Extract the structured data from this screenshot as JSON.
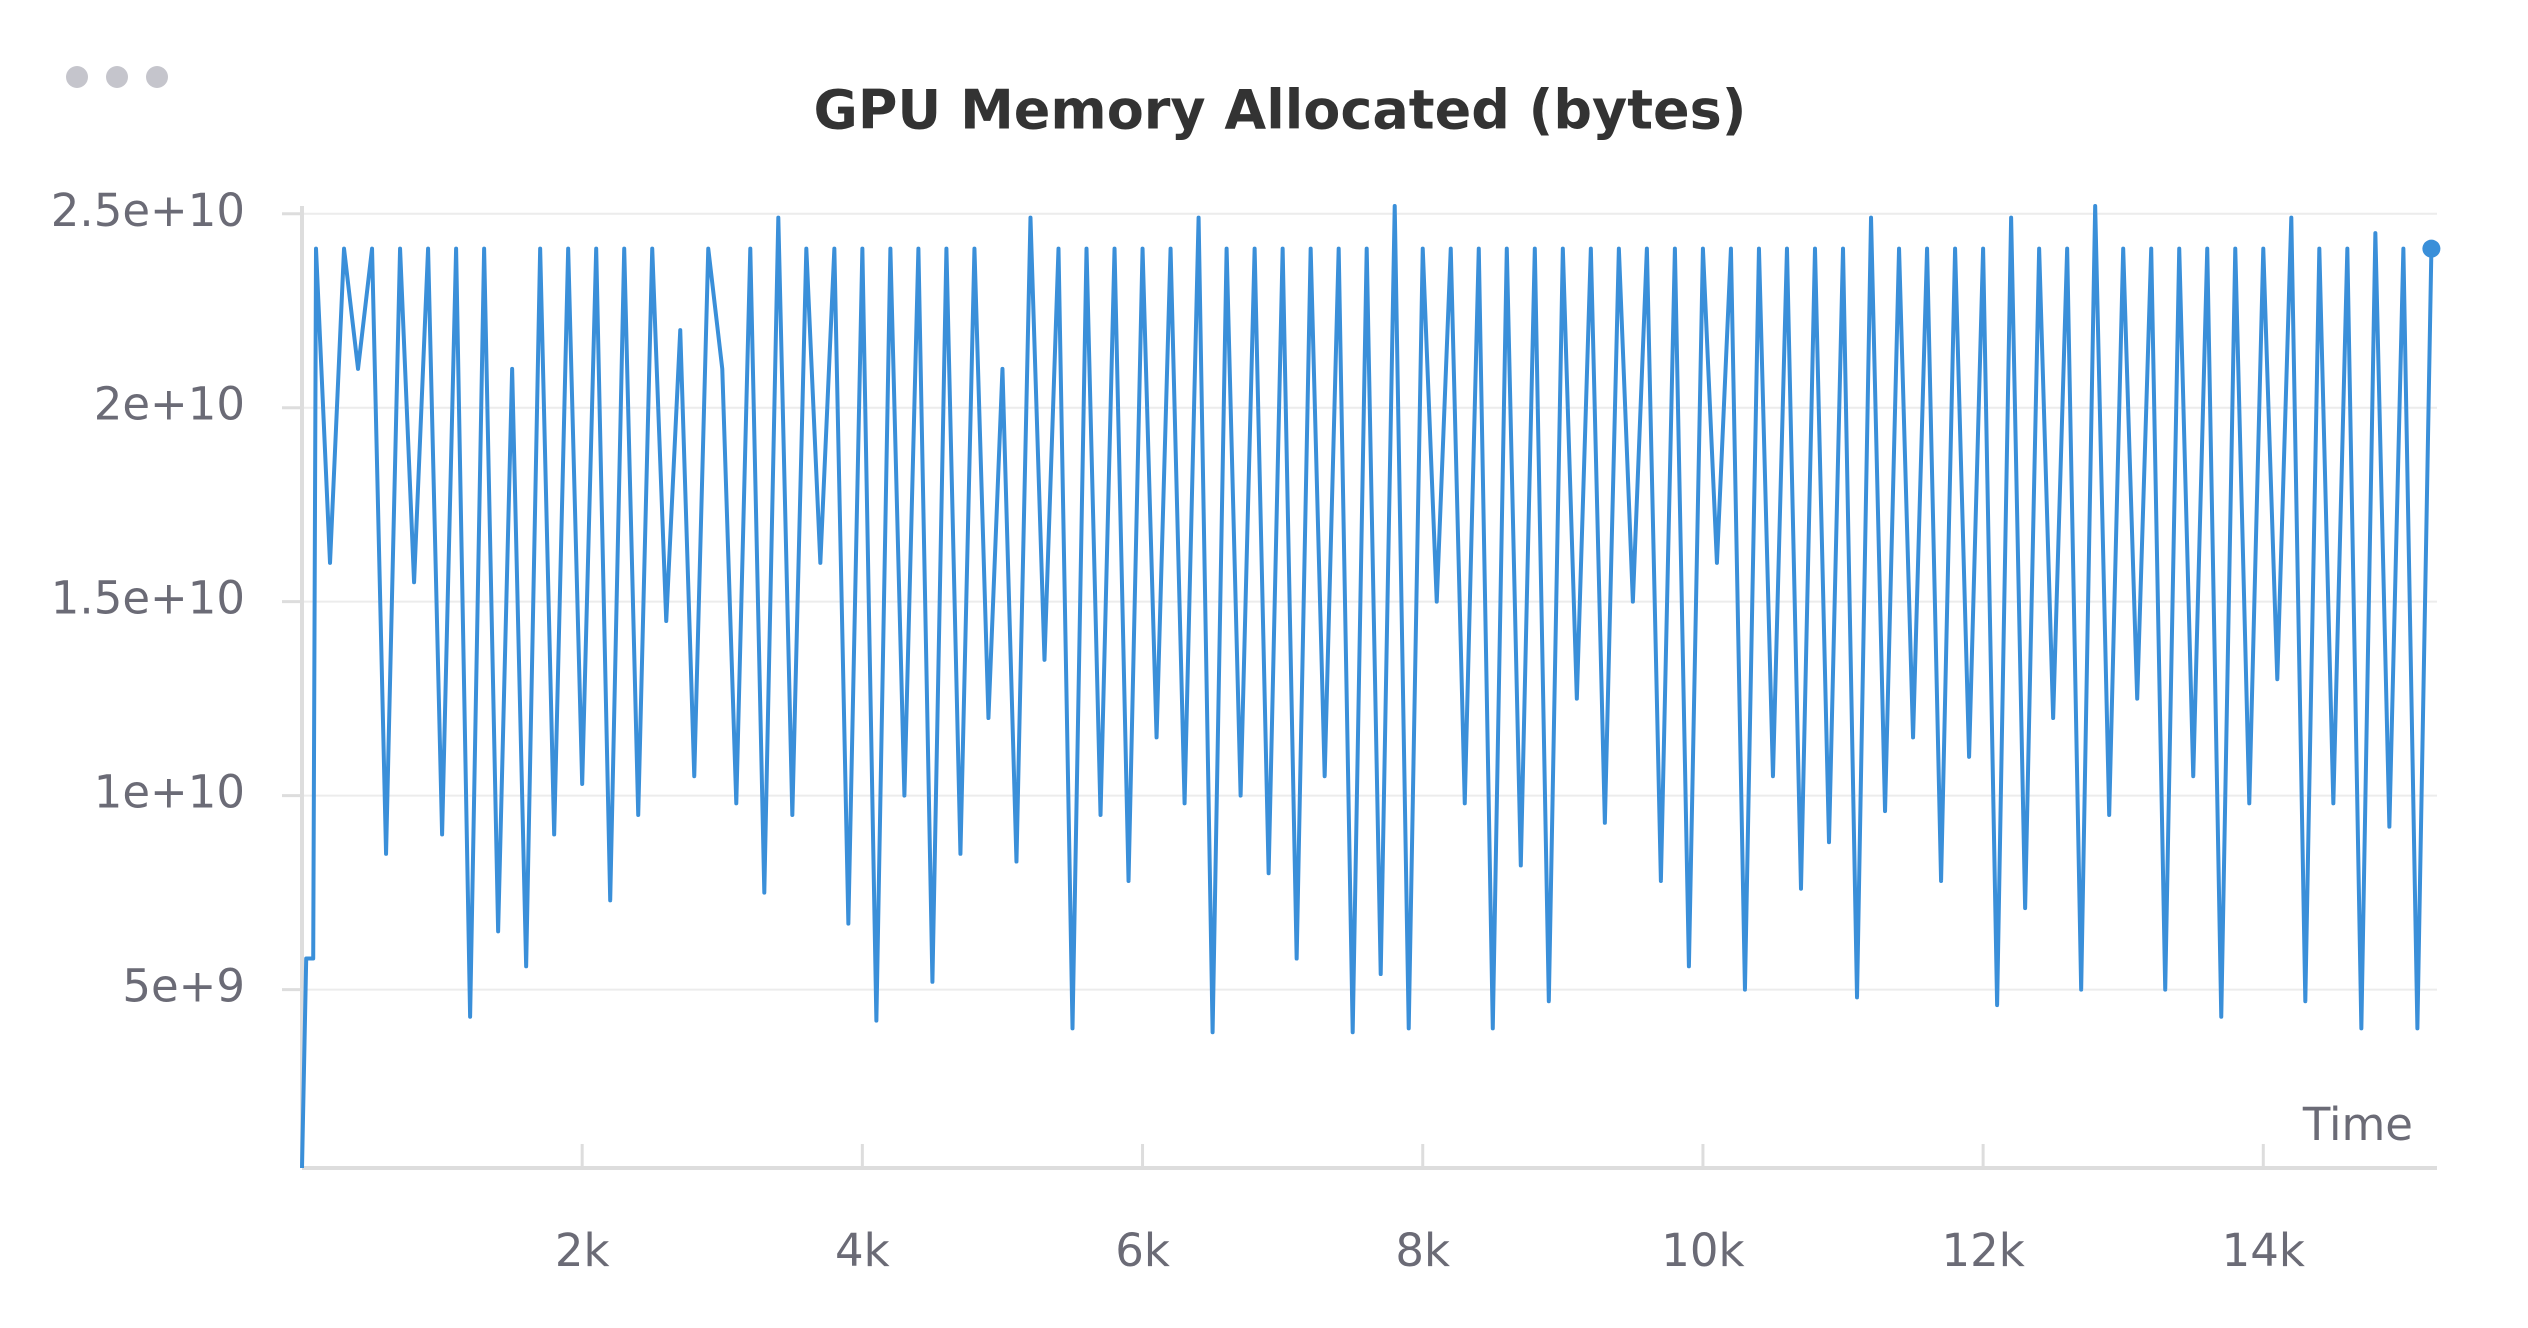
{
  "chart_data": {
    "type": "line",
    "title": "GPU Memory Allocated (bytes)",
    "x_label": "Time",
    "xlim": [
      0,
      15240
    ],
    "ylim": [
      400000000,
      25200000000
    ],
    "xticks": [
      {
        "value": 2000,
        "label": "2k"
      },
      {
        "value": 4000,
        "label": "4k"
      },
      {
        "value": 6000,
        "label": "6k"
      },
      {
        "value": 8000,
        "label": "8k"
      },
      {
        "value": 10000,
        "label": "10k"
      },
      {
        "value": 12000,
        "label": "12k"
      },
      {
        "value": 14000,
        "label": "14k"
      }
    ],
    "yticks": [
      {
        "value": 5000000000,
        "label": "5e+9"
      },
      {
        "value": 10000000000,
        "label": "1e+10"
      },
      {
        "value": 15000000000,
        "label": "1.5e+10"
      },
      {
        "value": 20000000000,
        "label": "2e+10"
      },
      {
        "value": 25000000000,
        "label": "2.5e+10"
      }
    ],
    "grid": true,
    "x": [
      0,
      30,
      80,
      100,
      200,
      300,
      400,
      500,
      600,
      700,
      800,
      900,
      1000,
      1100,
      1200,
      1300,
      1400,
      1500,
      1600,
      1700,
      1800,
      1900,
      2000,
      2100,
      2200,
      2300,
      2400,
      2500,
      2600,
      2700,
      2800,
      2900,
      3000,
      3100,
      3200,
      3300,
      3400,
      3500,
      3600,
      3700,
      3800,
      3900,
      4000,
      4100,
      4200,
      4300,
      4400,
      4500,
      4600,
      4700,
      4800,
      4900,
      5000,
      5100,
      5200,
      5300,
      5400,
      5500,
      5600,
      5700,
      5800,
      5900,
      6000,
      6100,
      6200,
      6300,
      6400,
      6500,
      6600,
      6700,
      6800,
      6900,
      7000,
      7100,
      7200,
      7300,
      7400,
      7500,
      7600,
      7700,
      7800,
      7900,
      8000,
      8100,
      8200,
      8300,
      8400,
      8500,
      8600,
      8700,
      8800,
      8900,
      9000,
      9100,
      9200,
      9300,
      9400,
      9500,
      9600,
      9700,
      9800,
      9900,
      10000,
      10100,
      10200,
      10300,
      10400,
      10500,
      10600,
      10700,
      10800,
      10900,
      11000,
      11100,
      11200,
      11300,
      11400,
      11500,
      11600,
      11700,
      11800,
      11900,
      12000,
      12100,
      12200,
      12300,
      12400,
      12500,
      12600,
      12700,
      12800,
      12900,
      13000,
      13100,
      13200,
      13300,
      13400,
      13500,
      13600,
      13700,
      13800,
      13900,
      14000,
      14100,
      14200,
      14300,
      14400,
      14500,
      14600,
      14700,
      14800,
      14900,
      15000,
      15100,
      15200
    ],
    "series": [
      {
        "name": "GPU Memory Allocated",
        "color": "#3a8fd9",
        "values": [
          400000000.0,
          5800000000.0,
          5800000000.0,
          24100000000.0,
          16000000000.0,
          24100000000.0,
          21000000000.0,
          24100000000.0,
          8500000000.0,
          24100000000.0,
          15500000000.0,
          24100000000.0,
          9000000000.0,
          24100000000.0,
          4300000000.0,
          24100000000.0,
          6500000000.0,
          21000000000.0,
          5600000000.0,
          24100000000.0,
          9000000000.0,
          24100000000.0,
          10300000000.0,
          24100000000.0,
          7300000000.0,
          24100000000.0,
          9500000000.0,
          24100000000.0,
          14500000000.0,
          22000000000.0,
          10500000000.0,
          24100000000.0,
          21000000000.0,
          9800000000.0,
          24100000000.0,
          7500000000.0,
          24900000000.0,
          9500000000.0,
          24100000000.0,
          16000000000.0,
          24100000000.0,
          6700000000.0,
          24100000000.0,
          4200000000.0,
          24100000000.0,
          10000000000.0,
          24100000000.0,
          5200000000.0,
          24100000000.0,
          8500000000.0,
          24100000000.0,
          12000000000.0,
          21000000000.0,
          8300000000.0,
          24900000000.0,
          13500000000.0,
          24100000000.0,
          4000000000.0,
          24100000000.0,
          9500000000.0,
          24100000000.0,
          7800000000.0,
          24100000000.0,
          11500000000.0,
          24100000000.0,
          9800000000.0,
          24900000000.0,
          3900000000.0,
          24100000000.0,
          10000000000.0,
          24100000000.0,
          8000000000.0,
          24100000000.0,
          5800000000.0,
          24100000000.0,
          10500000000.0,
          24100000000.0,
          3900000000.0,
          24100000000.0,
          5400000000.0,
          25200000000.0,
          4000000000.0,
          24100000000.0,
          15000000000.0,
          24100000000.0,
          9800000000.0,
          24100000000.0,
          4000000000.0,
          24100000000.0,
          8200000000.0,
          24100000000.0,
          4700000000.0,
          24100000000.0,
          12500000000.0,
          24100000000.0,
          9300000000.0,
          24100000000.0,
          15000000000.0,
          24100000000.0,
          7800000000.0,
          24100000000.0,
          5600000000.0,
          24100000000.0,
          16000000000.0,
          24100000000.0,
          5000000000.0,
          24100000000.0,
          10500000000.0,
          24100000000.0,
          7600000000.0,
          24100000000.0,
          8800000000.0,
          24100000000.0,
          4800000000.0,
          24900000000.0,
          9600000000.0,
          24100000000.0,
          11500000000.0,
          24100000000.0,
          7800000000.0,
          24100000000.0,
          11000000000.0,
          24100000000.0,
          4600000000.0,
          24900000000.0,
          7100000000.0,
          24100000000.0,
          12000000000.0,
          24100000000.0,
          5000000000.0,
          25200000000.0,
          9500000000.0,
          24100000000.0,
          12500000000.0,
          24100000000.0,
          5000000000.0,
          24100000000.0,
          10500000000.0,
          24100000000.0,
          4300000000.0,
          24100000000.0,
          9800000000.0,
          24100000000.0,
          13000000000.0,
          24900000000.0,
          4700000000.0,
          24100000000.0,
          9800000000.0,
          24100000000.0,
          4000000000.0,
          24500000000.0,
          9200000000.0,
          24100000000.0,
          4000000000.0,
          24100000000.0
        ]
      }
    ]
  }
}
